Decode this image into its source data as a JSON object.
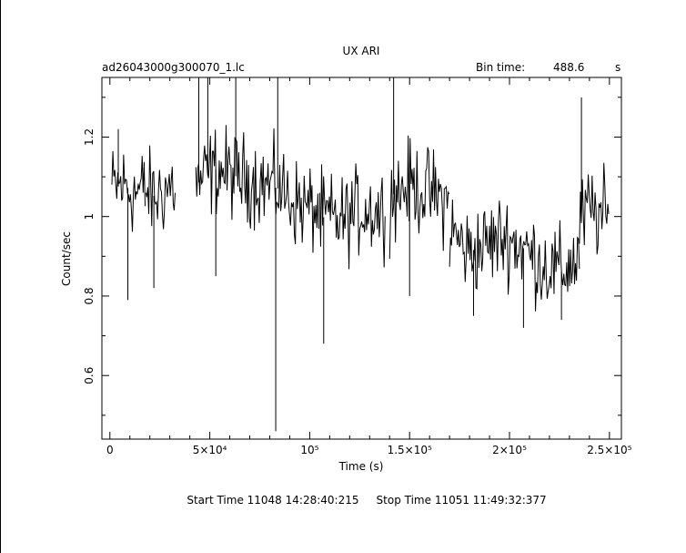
{
  "chart_data": {
    "type": "line",
    "title": "UX ARI",
    "file_label": "ad26043000g300070_1.lc",
    "bin_time_label": "Bin time:",
    "bin_time_value": "488.6",
    "bin_time_unit": "s",
    "xlabel": "Time (s)",
    "ylabel": "Count/sec",
    "footer": "Start Time 11048 14:28:40:215     Stop Time 11051 11:49:32:377",
    "xlim": [
      -4000,
      256000
    ],
    "ylim": [
      0.44,
      1.35
    ],
    "x_ticks": [
      {
        "value": 0,
        "label": "0"
      },
      {
        "value": 50000,
        "label": "5×10⁴"
      },
      {
        "value": 100000,
        "label": "10⁵"
      },
      {
        "value": 150000,
        "label": "1.5×10⁵"
      },
      {
        "value": 200000,
        "label": "2×10⁵"
      },
      {
        "value": 250000,
        "label": "2.5×10⁵"
      }
    ],
    "y_ticks": [
      {
        "value": 0.6,
        "label": "0.6"
      },
      {
        "value": 0.8,
        "label": "0.8"
      },
      {
        "value": 1.0,
        "label": "1"
      },
      {
        "value": 1.2,
        "label": "1.2"
      }
    ],
    "grid": false,
    "series": [
      {
        "segments": [
          {
            "x_start": 1000,
            "x_end": 18000,
            "trend": [
              1.07,
              1.08,
              1.06,
              1.07
            ]
          },
          {
            "x_start": 18000,
            "x_end": 33000,
            "trend": [
              1.06,
              1.05,
              1.07,
              1.08
            ]
          },
          {
            "x_start": 43000,
            "x_end": 105000,
            "trend": [
              1.08,
              1.12,
              1.1,
              1.09,
              1.07,
              1.03,
              1.01
            ]
          },
          {
            "x_start": 105000,
            "x_end": 138000,
            "trend": [
              1.0,
              0.99,
              1.02,
              1.01
            ]
          },
          {
            "x_start": 140000,
            "x_end": 170000,
            "trend": [
              1.05,
              1.08,
              1.06,
              1.03
            ]
          },
          {
            "x_start": 170000,
            "x_end": 235000,
            "trend": [
              0.97,
              0.91,
              0.93,
              0.95,
              0.92,
              0.88,
              0.86,
              0.9
            ]
          },
          {
            "x_start": 235000,
            "x_end": 250000,
            "trend": [
              0.98,
              1.02,
              1.0,
              1.0
            ]
          }
        ],
        "spikes": [
          {
            "x": 4200,
            "y": 1.22
          },
          {
            "x": 9000,
            "y": 0.79
          },
          {
            "x": 22000,
            "y": 0.82
          },
          {
            "x": 44500,
            "y": 1.35
          },
          {
            "x": 49000,
            "y": 1.35
          },
          {
            "x": 53000,
            "y": 0.85
          },
          {
            "x": 63000,
            "y": 1.35
          },
          {
            "x": 83000,
            "y": 0.46
          },
          {
            "x": 84000,
            "y": 1.35
          },
          {
            "x": 107000,
            "y": 0.68
          },
          {
            "x": 142000,
            "y": 1.35
          },
          {
            "x": 150000,
            "y": 0.8
          },
          {
            "x": 182000,
            "y": 0.75
          },
          {
            "x": 207000,
            "y": 0.72
          },
          {
            "x": 226000,
            "y": 0.74
          },
          {
            "x": 236000,
            "y": 1.3
          }
        ]
      }
    ]
  }
}
